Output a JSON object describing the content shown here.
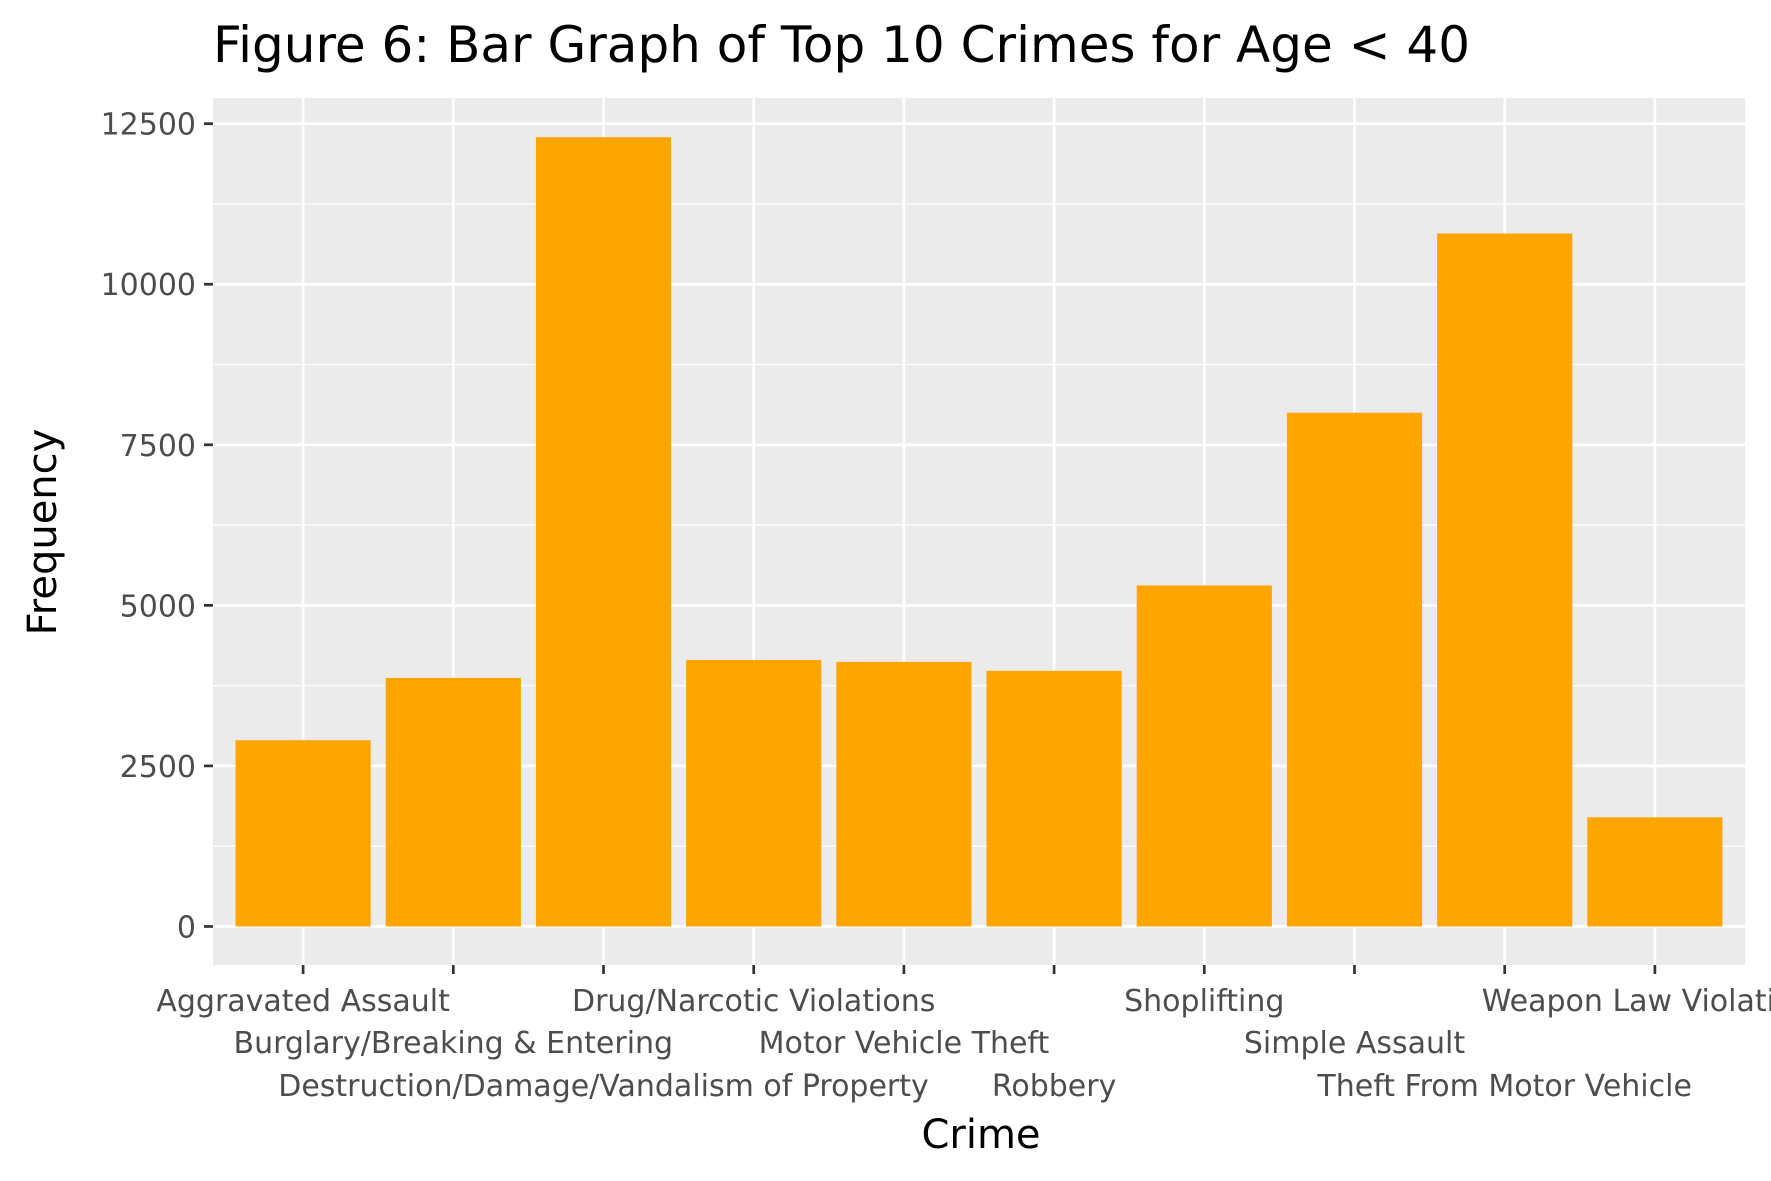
{
  "chart_data": {
    "type": "bar",
    "title": "Figure 6: Bar Graph of Top 10 Crimes for Age < 40",
    "xlabel": "Crime",
    "ylabel": "Frequency",
    "categories": [
      "Aggravated Assault",
      "Burglary/Breaking & Entering",
      "Destruction/Damage/Vandalism of Property",
      "Drug/Narcotic Violations",
      "Motor Vehicle Theft",
      "Robbery",
      "Shoplifting",
      "Simple Assault",
      "Theft From Motor Vehicle",
      "Weapon Law Violations"
    ],
    "values": [
      2900,
      3870,
      12290,
      4150,
      4120,
      3980,
      5310,
      8000,
      10790,
      1700
    ],
    "ylim": [
      -600,
      12900
    ],
    "yticks": [
      0,
      2500,
      5000,
      7500,
      10000,
      12500
    ],
    "ytick_labels": [
      "0",
      "2500",
      "5000",
      "7500",
      "10000",
      "12500"
    ],
    "grid": true,
    "bar_color": "#FFA500",
    "panel_color": "#EBEBEB",
    "grid_color": "#FFFFFF"
  }
}
